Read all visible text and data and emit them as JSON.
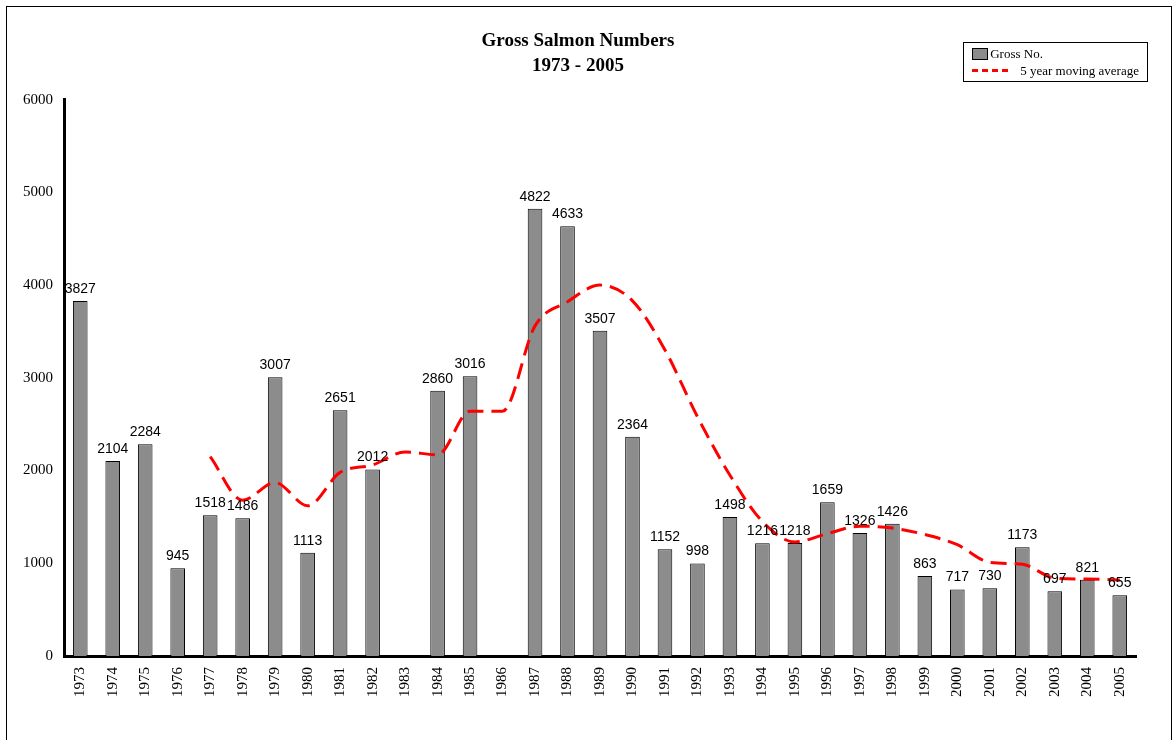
{
  "chart_data": {
    "type": "bar",
    "title": "Gross Salmon Numbers",
    "subtitle": "1973 - 2005",
    "categories": [
      "1973",
      "1974",
      "1975",
      "1976",
      "1977",
      "1978",
      "1979",
      "1980",
      "1981",
      "1982",
      "1983",
      "1984",
      "1985",
      "1986",
      "1987",
      "1988",
      "1989",
      "1990",
      "1991",
      "1992",
      "1993",
      "1994",
      "1995",
      "1996",
      "1997",
      "1998",
      "1999",
      "2000",
      "2001",
      "2002",
      "2003",
      "2004",
      "2005"
    ],
    "series": [
      {
        "name": "Gross No.",
        "color": "#8c8c8c",
        "values": [
          3827,
          2104,
          2284,
          945,
          1518,
          1486,
          3007,
          1113,
          2651,
          2012,
          null,
          2860,
          3016,
          null,
          4822,
          4633,
          3507,
          2364,
          1152,
          998,
          1498,
          1216,
          1218,
          1659,
          1326,
          1426,
          863,
          717,
          730,
          1173,
          697,
          821,
          655
        ],
        "value_labels": [
          "3827",
          "2104",
          "2284",
          "945",
          "1518",
          "1486",
          "3007",
          "1113",
          "2651",
          "2012",
          null,
          "2860",
          "3016",
          null,
          "4822",
          "4633",
          "3507",
          "2364",
          "1152",
          "998",
          "1498",
          "1216",
          "1218",
          "1659",
          "1326",
          "1426",
          "863",
          "717",
          "730",
          "1173",
          "697",
          "821",
          "655"
        ]
      },
      {
        "name": "5 year moving average",
        "type": "line",
        "color": "#ff0000",
        "line_style": "dashed",
        "values": [
          null,
          null,
          null,
          null,
          2150,
          1680,
          1870,
          1620,
          1980,
          2060,
          2200,
          2170,
          2640,
          2640,
          3560,
          3820,
          4000,
          3830,
          3300,
          2580,
          1950,
          1450,
          1230,
          1320,
          1400,
          1380,
          1310,
          1200,
          1010,
          990,
          840,
          830,
          820
        ]
      }
    ],
    "ylim": [
      0,
      6000
    ],
    "yticks": [
      0,
      1000,
      2000,
      3000,
      4000,
      5000,
      6000
    ],
    "grid": false,
    "legend": "top right",
    "marker": "none"
  }
}
